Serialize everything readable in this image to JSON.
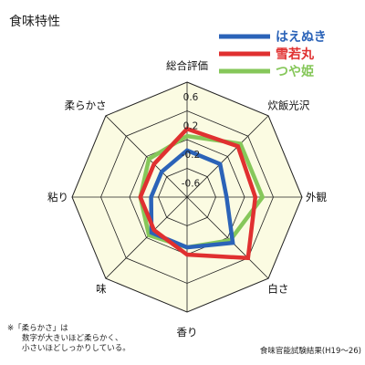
{
  "chart_data": {
    "type": "radar",
    "title": "食味特性",
    "axes": [
      "総合評価",
      "炊飯光沢",
      "外観",
      "白さ",
      "香り",
      "味",
      "粘り",
      "柔らかさ"
    ],
    "rmin": -0.8,
    "rmax": 0.8,
    "ticks": [
      0.6,
      0.2,
      -0.2,
      -0.6
    ],
    "tick_labels": [
      "0.6",
      "0.2",
      "-0.2",
      "-0.6"
    ],
    "grid": true,
    "legend_position": "top-right",
    "series": [
      {
        "name": "はえぬき",
        "color": "#2b63b8",
        "values": [
          -0.15,
          -0.15,
          -0.25,
          0.1,
          -0.1,
          -0.1,
          -0.3,
          -0.3
        ]
      },
      {
        "name": "雪若丸",
        "color": "#e03030",
        "values": [
          0.15,
          0.2,
          0.15,
          0.4,
          0.0,
          -0.15,
          -0.15,
          -0.15
        ]
      },
      {
        "name": "つや姫",
        "color": "#86c75a",
        "values": [
          0.05,
          0.25,
          0.25,
          0.05,
          -0.1,
          -0.05,
          -0.15,
          -0.05
        ]
      }
    ],
    "note_lines": [
      "※「柔らかさ」は",
      "数字が大きいほど柔らかく、",
      "小さいほどしっかりしている。"
    ],
    "source": "食味官能試験結果(H19〜26)"
  },
  "colors": {
    "plot_fill": "#fbfbe2",
    "grid_stroke": "#222222"
  }
}
